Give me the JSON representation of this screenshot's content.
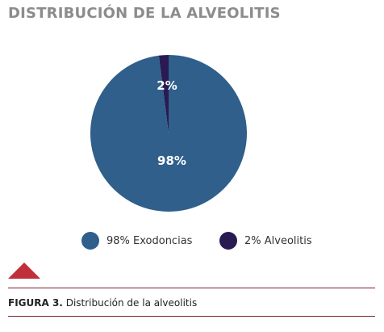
{
  "chart_data": {
    "type": "pie",
    "title": "DISTRIBUCIÓN DE LA ALVEOLITIS",
    "slices": [
      {
        "label": "98% Exodoncias",
        "value": 98,
        "data_label": "98%",
        "color": "#2f5f8a"
      },
      {
        "label": "2% Alveolitis",
        "value": 2,
        "data_label": "2%",
        "color": "#2a1a52"
      }
    ],
    "legend_position": "bottom"
  },
  "figure": {
    "label": "FIGURA 3.",
    "caption": "Distribución de la alveolitis"
  },
  "colors": {
    "title": "#8c8c8c",
    "accent": "#c0303a",
    "rule": "#7a1f2b"
  }
}
